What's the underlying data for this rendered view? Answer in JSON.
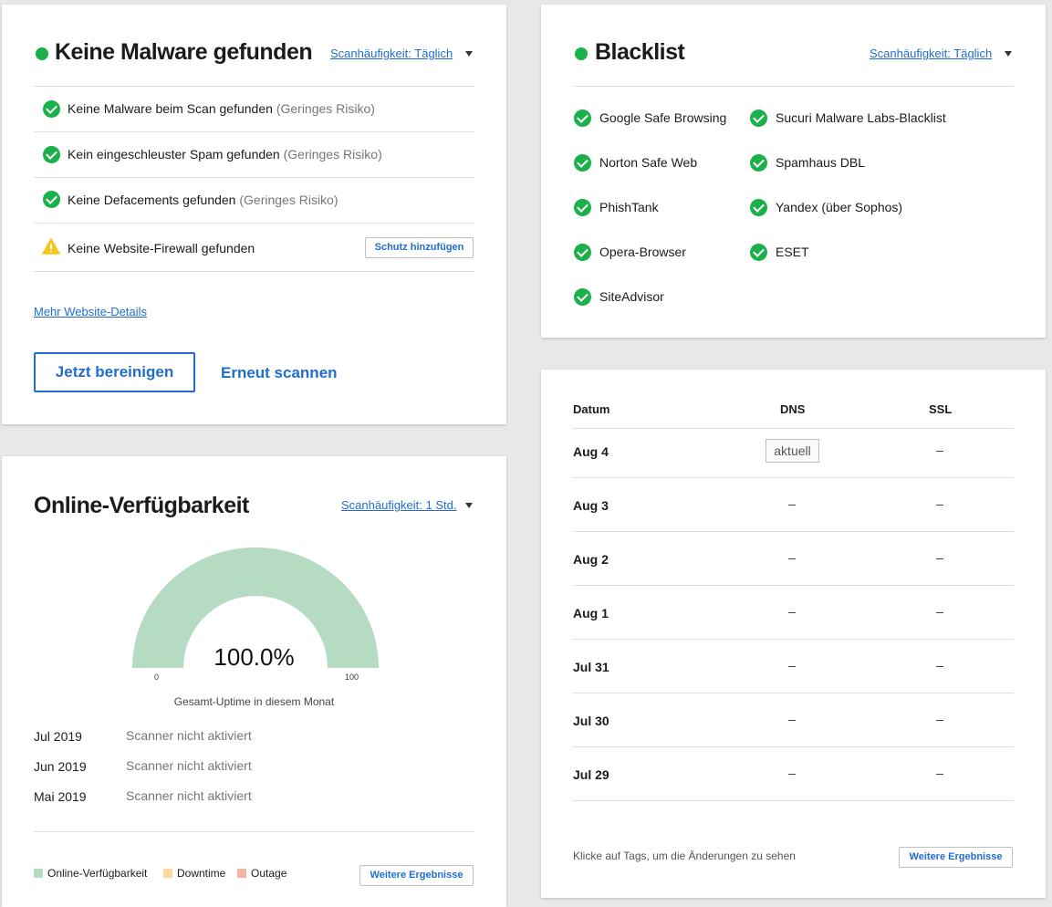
{
  "malware": {
    "title": "Keine Malware gefunden",
    "frequency": "Scanhäufigkeit: Täglich",
    "items": [
      {
        "text": "Keine Malware beim Scan gefunden",
        "risk": "(Geringes Risiko)"
      },
      {
        "text": "Kein eingeschleuster Spam gefunden",
        "risk": "(Geringes Risiko)"
      },
      {
        "text": "Keine Defacements gefunden",
        "risk": "(Geringes Risiko)"
      }
    ],
    "firewall_text": "Keine Website-Firewall gefunden",
    "firewall_button": "Schutz hinzufügen",
    "details_link": "Mehr Website-Details",
    "clean_button": "Jetzt bereinigen",
    "rescan_button": "Erneut scannen"
  },
  "uptime": {
    "title": "Online-Verfügbarkeit",
    "frequency": "Scanhäufigkeit: 1 Std.",
    "gauge_value": "100.0%",
    "gauge_fraction": 1.0,
    "gauge_min": "0",
    "gauge_max": "100",
    "gauge_caption": "Gesamt-Uptime in diesem Monat",
    "history": [
      {
        "month": "Jul 2019",
        "status": "Scanner nicht aktiviert"
      },
      {
        "month": "Jun 2019",
        "status": "Scanner nicht aktiviert"
      },
      {
        "month": "Mai 2019",
        "status": "Scanner nicht aktiviert"
      }
    ],
    "legend": [
      {
        "label": "Online-Verfügbarkeit",
        "color": "#b5dbc3"
      },
      {
        "label": "Downtime",
        "color": "#fdd89c"
      },
      {
        "label": "Outage",
        "color": "#f4b3a3"
      }
    ],
    "more_button": "Weitere Ergebnisse"
  },
  "blacklist": {
    "title": "Blacklist",
    "frequency": "Scanhäufigkeit: Täglich",
    "left": [
      "Google Safe Browsing",
      "Norton Safe Web",
      "PhishTank",
      "Opera-Browser",
      "SiteAdvisor"
    ],
    "right": [
      "Sucuri Malware Labs-Blacklist",
      "Spamhaus DBL",
      "Yandex (über Sophos)",
      "ESET"
    ]
  },
  "dns": {
    "headers": {
      "date": "Datum",
      "dns": "DNS",
      "ssl": "SSL"
    },
    "rows": [
      {
        "date": "Aug 4",
        "dns": "aktuell",
        "ssl": "–"
      },
      {
        "date": "Aug 3",
        "dns": "–",
        "ssl": "–"
      },
      {
        "date": "Aug 2",
        "dns": "–",
        "ssl": "–"
      },
      {
        "date": "Aug 1",
        "dns": "–",
        "ssl": "–"
      },
      {
        "date": "Jul 31",
        "dns": "–",
        "ssl": "–"
      },
      {
        "date": "Jul 30",
        "dns": "–",
        "ssl": "–"
      },
      {
        "date": "Jul 29",
        "dns": "–",
        "ssl": "–"
      }
    ],
    "footnote": "Klicke auf Tags, um die Änderungen zu sehen",
    "more_button": "Weitere Ergebnisse"
  },
  "colors": {
    "accent": "#1f6dd0",
    "success": "#1bb04a",
    "warning": "#f5c518",
    "gauge": "#b5dbc3"
  }
}
